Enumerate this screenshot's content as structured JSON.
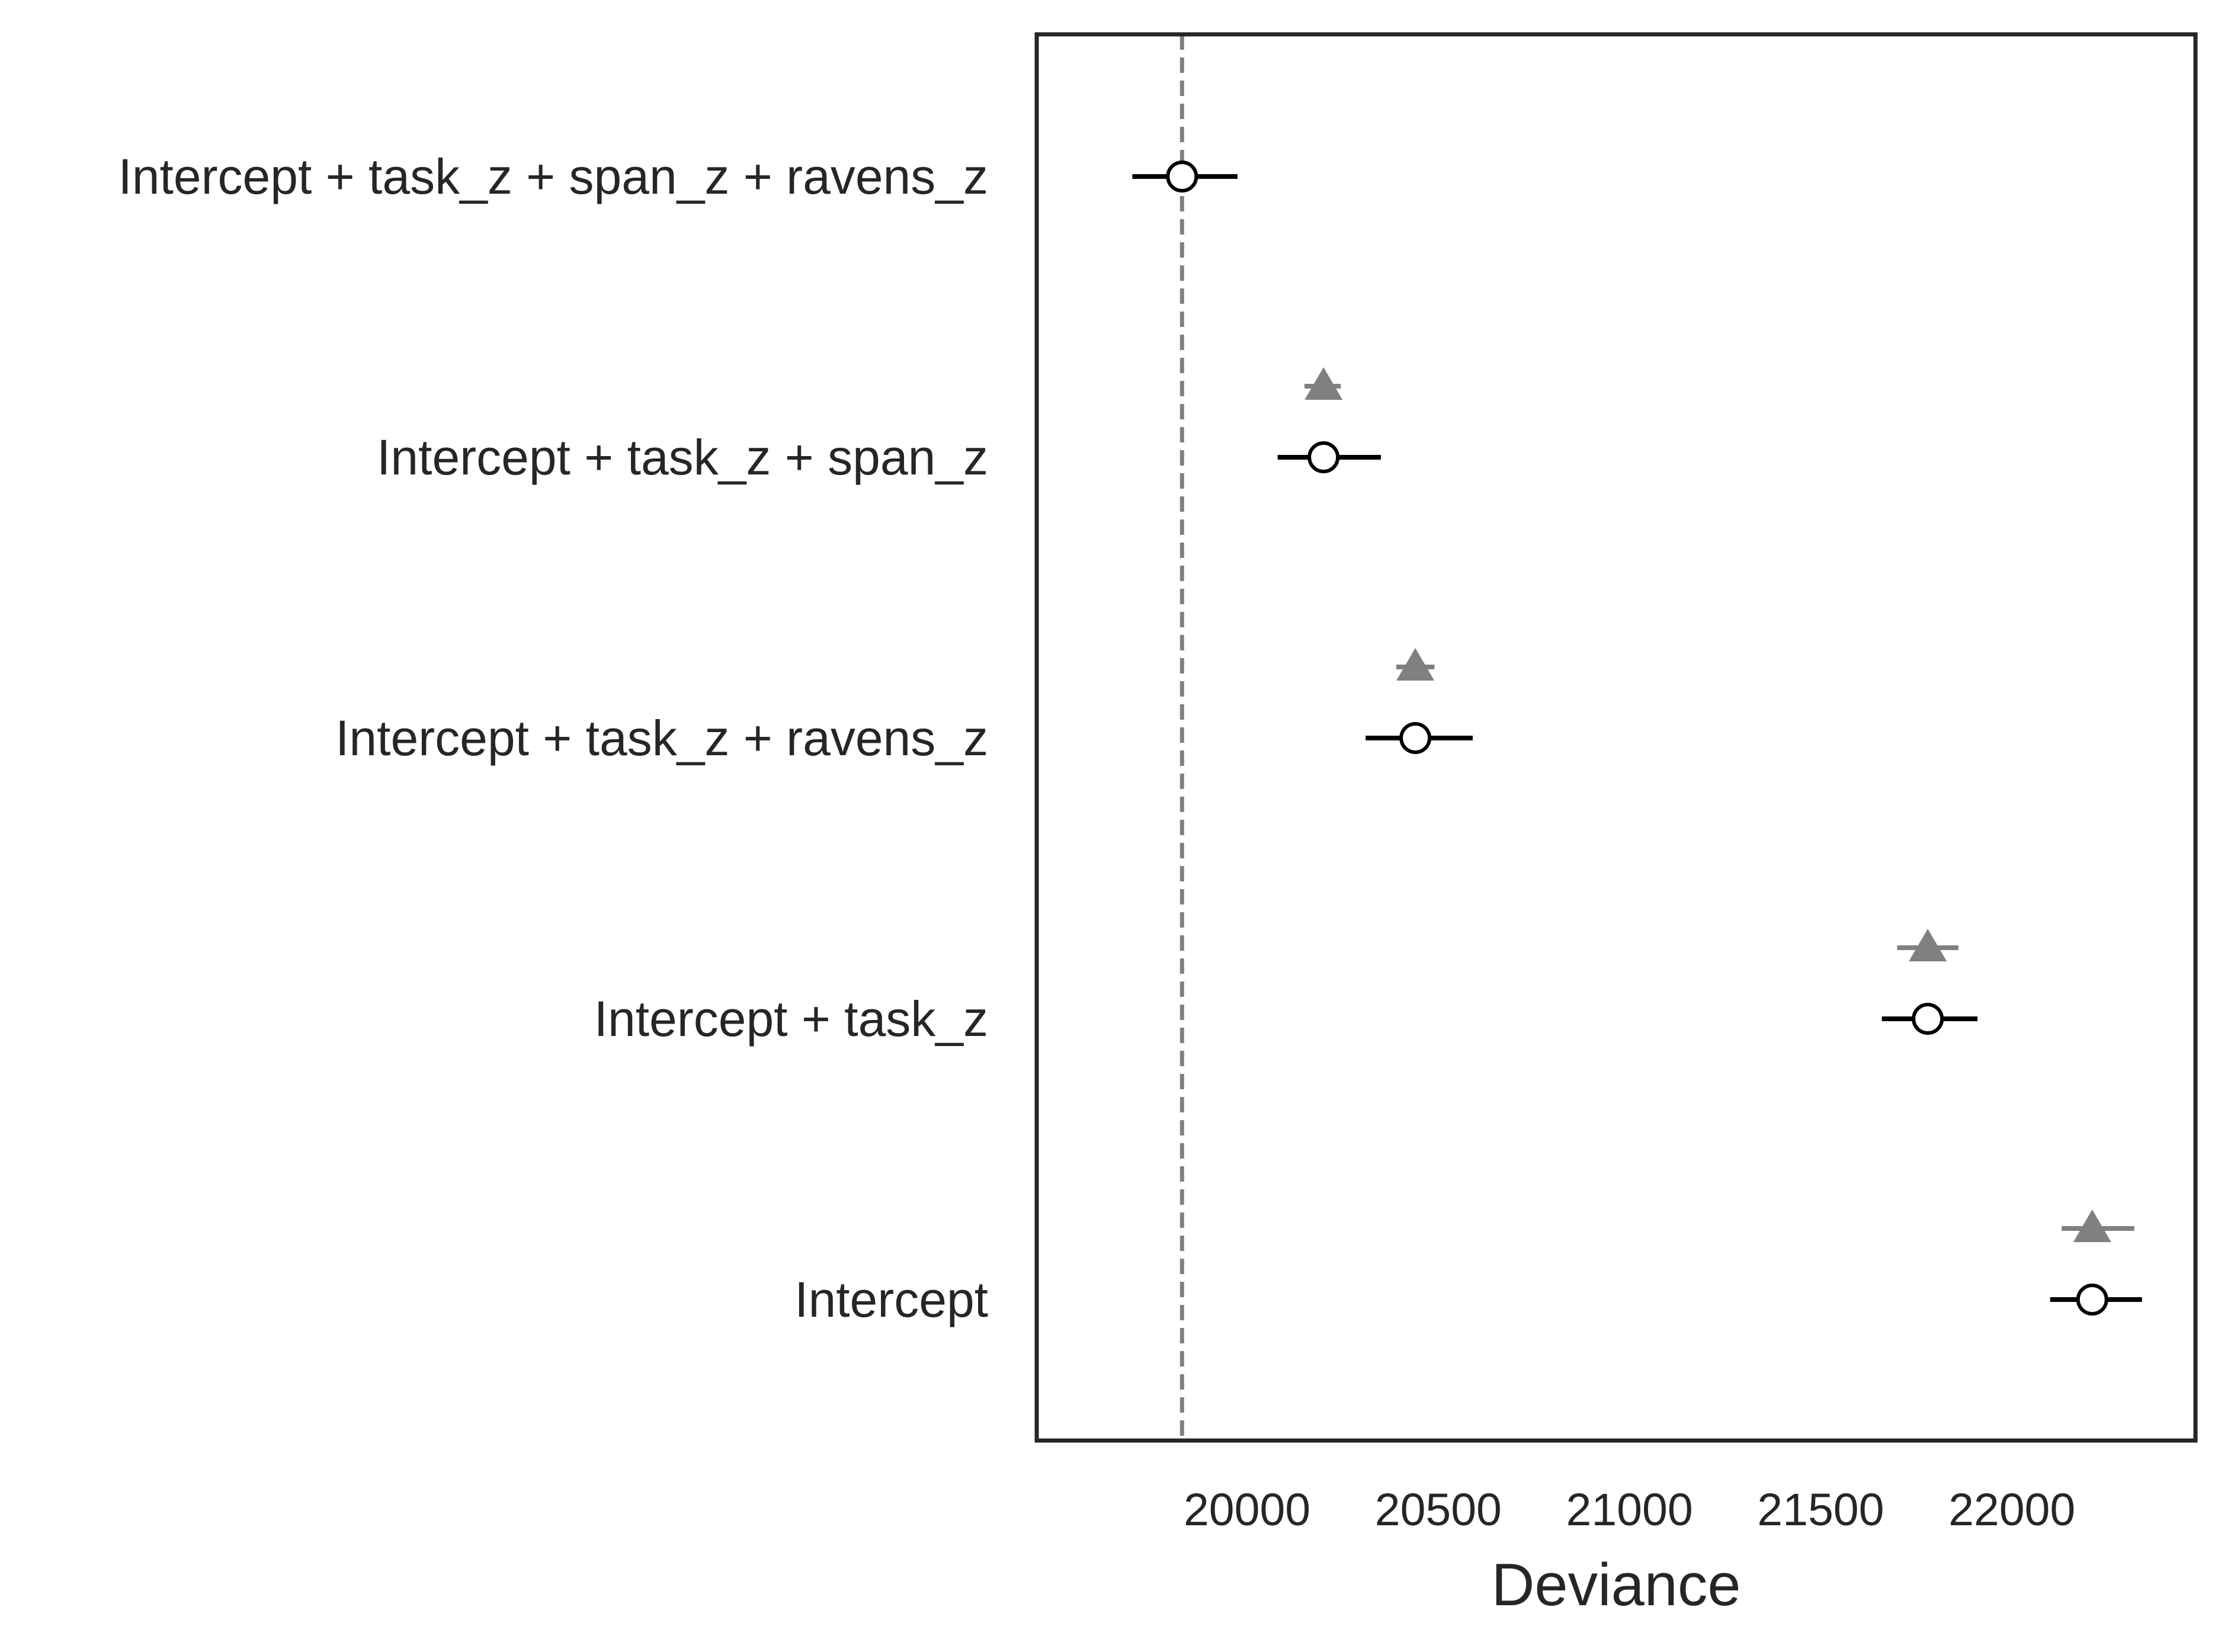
{
  "chart_data": {
    "type": "scatter",
    "title": "",
    "xlabel": "Deviance",
    "ylabel": "",
    "xlim": [
      19450,
      22480
    ],
    "xticks": [
      20000,
      20500,
      21000,
      21500,
      22000
    ],
    "xtick_labels": [
      "20000",
      "20500",
      "21000",
      "21500",
      "22000"
    ],
    "grid": false,
    "legend": "none",
    "reference_line": {
      "x": 19830,
      "style": "dashed",
      "color": "#808080"
    },
    "models": [
      {
        "label": "Intercept + task_z + span_z + ravens_z",
        "deviance": 19830,
        "deviance_low": 19700,
        "deviance_high": 19975,
        "in_sample": null,
        "in_sample_low": null,
        "in_sample_high": null
      },
      {
        "label": "Intercept + task_z + span_z",
        "deviance": 20200,
        "deviance_low": 20080,
        "deviance_high": 20350,
        "in_sample": 20200,
        "in_sample_low": 20150,
        "in_sample_high": 20245
      },
      {
        "label": "Intercept + task_z + ravens_z",
        "deviance": 20440,
        "deviance_low": 20310,
        "deviance_high": 20590,
        "in_sample": 20440,
        "in_sample_low": 20390,
        "in_sample_high": 20490
      },
      {
        "label": "Intercept + task_z",
        "deviance": 21780,
        "deviance_low": 21660,
        "deviance_high": 21910,
        "in_sample": 21780,
        "in_sample_low": 21700,
        "in_sample_high": 21860
      },
      {
        "label": "Intercept",
        "deviance": 22210,
        "deviance_low": 22100,
        "deviance_high": 22340,
        "in_sample": 22210,
        "in_sample_low": 22130,
        "in_sample_high": 22320
      }
    ],
    "colors": {
      "point_estimate": "#000000",
      "in_sample": "#808080",
      "frame": "#262626",
      "text": "#262626"
    },
    "markers": {
      "deviance": "open-circle",
      "in_sample": "filled-triangle"
    }
  }
}
